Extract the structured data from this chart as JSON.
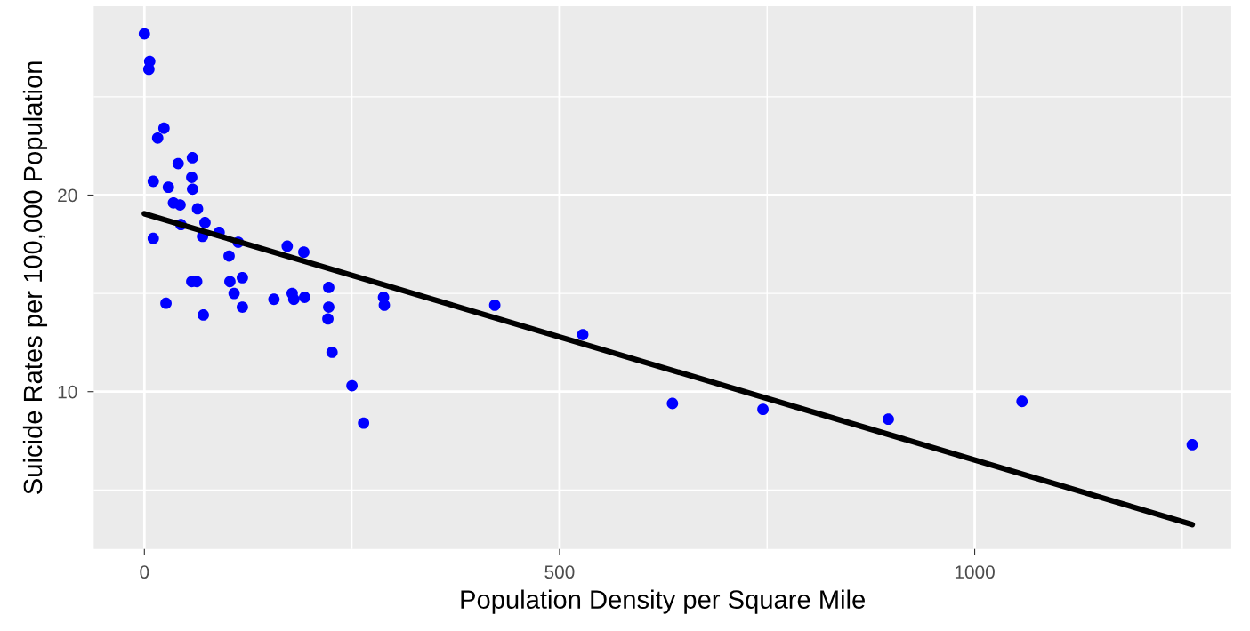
{
  "chart_data": {
    "type": "scatter",
    "xlabel": "Population Density per Square Mile",
    "ylabel": "Suicide Rates per 100,000 Population",
    "xlim": [
      -61,
      1309
    ],
    "ylim": [
      2.0,
      29.6
    ],
    "xticks": [
      0,
      500,
      1000
    ],
    "yticks": [
      10,
      20
    ],
    "grid": true,
    "series": [
      {
        "marker": "circle",
        "color": "#0000ff",
        "x": [
          0,
          6.4,
          5.4,
          23.6,
          16,
          57.8,
          40.7,
          10.7,
          28.9,
          57,
          58,
          35,
          43,
          64,
          44,
          73,
          10.7,
          70,
          90,
          113,
          102,
          172,
          192,
          57,
          63,
          103,
          118,
          108,
          26,
          71,
          118,
          156,
          178,
          180,
          193,
          222,
          222,
          221,
          226,
          250,
          288,
          289,
          264,
          422,
          528,
          636,
          745,
          896,
          1057,
          1262
        ],
        "values": [
          28.2,
          26.8,
          26.4,
          23.4,
          22.9,
          21.9,
          21.6,
          20.7,
          20.4,
          20.9,
          20.3,
          19.6,
          19.5,
          19.3,
          18.5,
          18.6,
          17.8,
          17.9,
          18.1,
          17.6,
          16.9,
          17.4,
          17.1,
          15.6,
          15.6,
          15.6,
          15.8,
          15.0,
          14.5,
          13.9,
          14.3,
          14.7,
          15.0,
          14.7,
          14.8,
          15.3,
          14.3,
          13.7,
          12.0,
          10.3,
          14.8,
          14.4,
          8.4,
          14.4,
          12.9,
          9.4,
          9.1,
          8.6,
          9.5,
          7.3
        ]
      },
      {
        "type": "line",
        "marker": "none",
        "color": "#000000",
        "x": [
          0,
          1262
        ],
        "values": [
          19.05,
          3.24
        ]
      }
    ]
  }
}
